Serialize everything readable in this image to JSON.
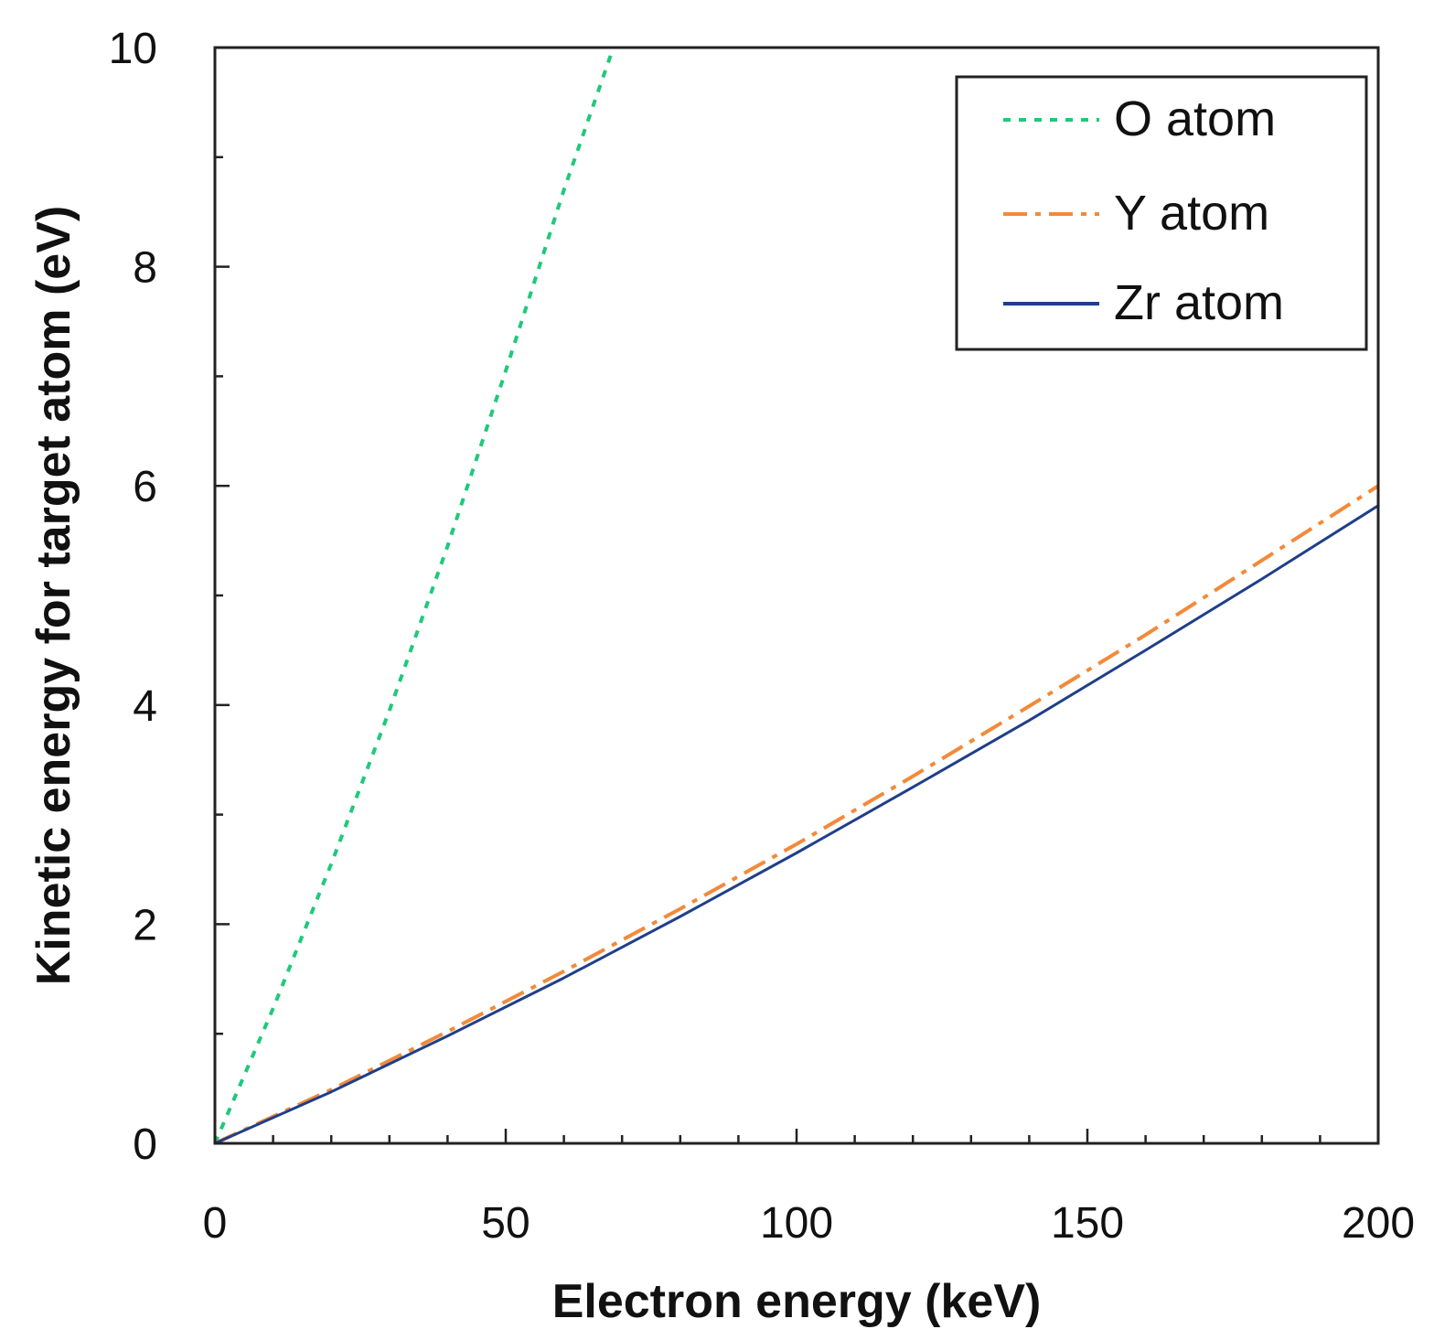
{
  "chart_data": {
    "type": "line",
    "title": "",
    "xlabel": "Electron energy (keV)",
    "ylabel": "Kinetic energy for target atom (eV)",
    "xlim": [
      0,
      200
    ],
    "ylim": [
      0,
      10
    ],
    "x_ticks": [
      0,
      50,
      100,
      150,
      200
    ],
    "y_ticks": [
      0,
      2,
      4,
      6,
      8,
      10
    ],
    "x_minor_step": 10,
    "y_minor_step": 1,
    "grid": false,
    "legend_position": "top-right",
    "series": [
      {
        "name": "O atom",
        "color": "#1fc97a",
        "style": "dotted",
        "x": [
          0,
          10,
          20,
          30,
          40,
          50,
          60,
          68.5
        ],
        "y": [
          0,
          1.23,
          2.55,
          3.95,
          5.45,
          7.05,
          8.7,
          10.0
        ]
      },
      {
        "name": "Y atom",
        "color": "#f28a3a",
        "style": "dashdot",
        "x": [
          0,
          20,
          40,
          60,
          80,
          100,
          120,
          140,
          160,
          180,
          200
        ],
        "y": [
          0,
          0.49,
          1.02,
          1.57,
          2.14,
          2.73,
          3.35,
          3.99,
          4.64,
          5.32,
          6.0
        ]
      },
      {
        "name": "Zr atom",
        "color": "#1f3f8a",
        "style": "solid",
        "x": [
          0,
          20,
          40,
          60,
          80,
          100,
          120,
          140,
          160,
          180,
          200
        ],
        "y": [
          0,
          0.47,
          0.98,
          1.51,
          2.07,
          2.65,
          3.25,
          3.86,
          4.5,
          5.15,
          5.82
        ]
      }
    ]
  }
}
